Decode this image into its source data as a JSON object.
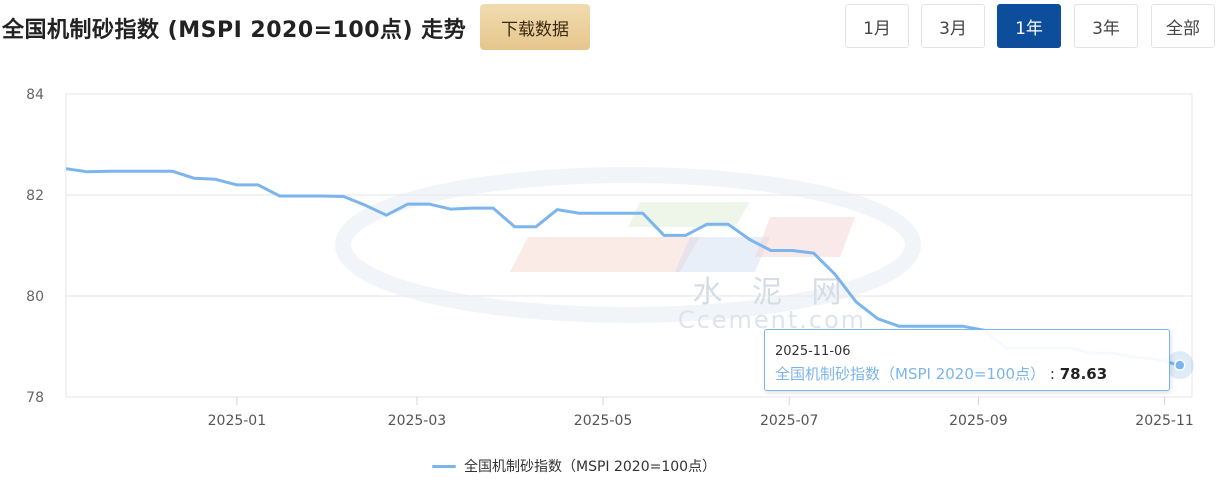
{
  "header": {
    "title": "全国机制砂指数 (MSPI 2020=100点) 走势",
    "download_label": "下载数据",
    "ranges": [
      "1月",
      "3月",
      "1年",
      "3年",
      "全部"
    ],
    "active_range": "1年"
  },
  "watermark": {
    "cn": "水 泥 网",
    "en": "Ccement.com"
  },
  "tooltip": {
    "date": "2025-11-06",
    "series": "全国机制砂指数（MSPI 2020=100点）",
    "sep": ":",
    "value": "78.63"
  },
  "colors": {
    "line": "#7cb5ec",
    "active_button": "#0c4e9b",
    "download_bg": "#ecd2a0"
  },
  "chart_data": {
    "type": "line",
    "title": "",
    "xlabel": "",
    "ylabel": "",
    "ylim": [
      78,
      84
    ],
    "yticks": [
      78,
      80,
      82,
      84
    ],
    "xtick_labels": [
      "2025-01",
      "2025-03",
      "2025-05",
      "2025-07",
      "2025-09",
      "2025-11"
    ],
    "x_range": [
      "2024-11-06",
      "2025-11-10"
    ],
    "grid": true,
    "legend": "bottom",
    "series": [
      {
        "name": "全国机制砂指数（MSPI 2020=100点）",
        "points": [
          [
            "2024-11-06",
            82.52
          ],
          [
            "2024-11-13",
            82.46
          ],
          [
            "2024-11-20",
            82.47
          ],
          [
            "2024-11-27",
            82.47
          ],
          [
            "2024-12-04",
            82.47
          ],
          [
            "2024-12-11",
            82.47
          ],
          [
            "2024-12-18",
            82.33
          ],
          [
            "2024-12-25",
            82.31
          ],
          [
            "2025-01-01",
            82.2
          ],
          [
            "2025-01-08",
            82.2
          ],
          [
            "2025-01-15",
            81.98
          ],
          [
            "2025-01-22",
            81.98
          ],
          [
            "2025-01-29",
            81.98
          ],
          [
            "2025-02-05",
            81.97
          ],
          [
            "2025-02-12",
            81.8
          ],
          [
            "2025-02-19",
            81.6
          ],
          [
            "2025-02-26",
            81.82
          ],
          [
            "2025-03-05",
            81.82
          ],
          [
            "2025-03-12",
            81.72
          ],
          [
            "2025-03-19",
            81.74
          ],
          [
            "2025-03-26",
            81.74
          ],
          [
            "2025-04-02",
            81.37
          ],
          [
            "2025-04-09",
            81.37
          ],
          [
            "2025-04-16",
            81.71
          ],
          [
            "2025-04-23",
            81.64
          ],
          [
            "2025-04-30",
            81.64
          ],
          [
            "2025-05-07",
            81.64
          ],
          [
            "2025-05-14",
            81.64
          ],
          [
            "2025-05-21",
            81.2
          ],
          [
            "2025-05-28",
            81.2
          ],
          [
            "2025-06-04",
            81.42
          ],
          [
            "2025-06-11",
            81.42
          ],
          [
            "2025-06-18",
            81.12
          ],
          [
            "2025-06-25",
            80.9
          ],
          [
            "2025-07-02",
            80.9
          ],
          [
            "2025-07-09",
            80.85
          ],
          [
            "2025-07-16",
            80.43
          ],
          [
            "2025-07-23",
            79.88
          ],
          [
            "2025-07-30",
            79.55
          ],
          [
            "2025-08-06",
            79.4
          ],
          [
            "2025-08-13",
            79.4
          ],
          [
            "2025-08-20",
            79.4
          ],
          [
            "2025-08-27",
            79.4
          ],
          [
            "2025-09-03",
            79.32
          ],
          [
            "2025-09-10",
            78.97
          ],
          [
            "2025-09-17",
            78.97
          ],
          [
            "2025-09-24",
            78.97
          ],
          [
            "2025-10-01",
            78.97
          ],
          [
            "2025-10-08",
            78.87
          ],
          [
            "2025-10-15",
            78.87
          ],
          [
            "2025-10-22",
            78.79
          ],
          [
            "2025-10-29",
            78.75
          ],
          [
            "2025-11-06",
            78.63
          ]
        ]
      }
    ]
  }
}
